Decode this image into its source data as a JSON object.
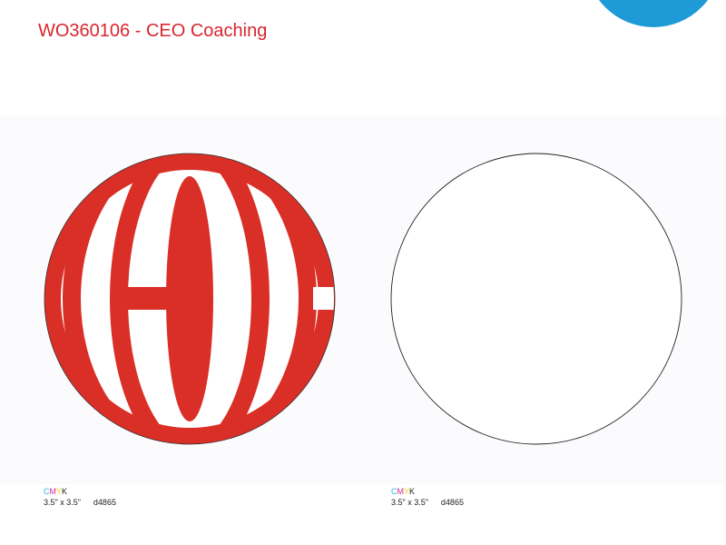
{
  "header": {
    "title": "WO360106 - CEO Coaching"
  },
  "panels": [
    {
      "process": [
        "C",
        "M",
        "Y",
        "K"
      ],
      "size": "3.5\" x 3.5\"",
      "code": "d4865"
    },
    {
      "process": [
        "C",
        "M",
        "Y",
        "K"
      ],
      "size": "3.5\" x 3.5\"",
      "code": "d4865"
    }
  ]
}
